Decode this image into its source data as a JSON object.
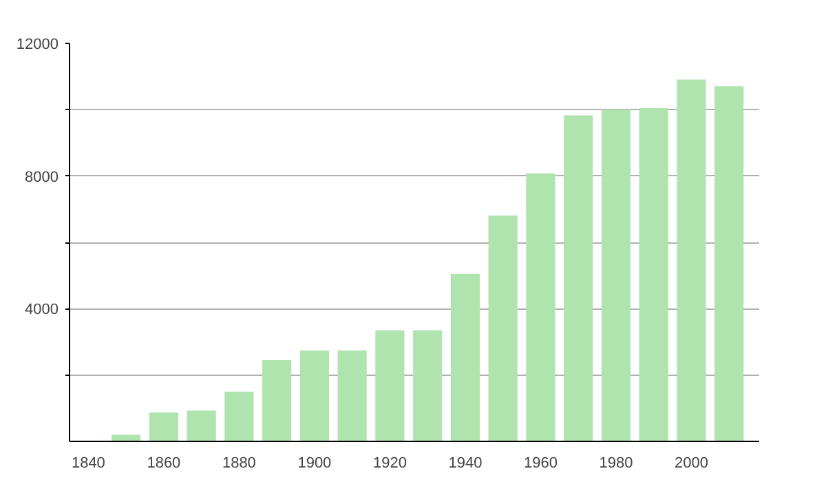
{
  "chart_data": {
    "type": "bar",
    "x": [
      1850,
      1860,
      1870,
      1880,
      1890,
      1900,
      1910,
      1920,
      1930,
      1940,
      1950,
      1960,
      1970,
      1980,
      1990,
      2000,
      2010
    ],
    "values": [
      200,
      870,
      930,
      1500,
      2450,
      2740,
      2740,
      3350,
      3350,
      5050,
      6810,
      8080,
      9830,
      10000,
      10050,
      10910,
      10710
    ],
    "color": "#b0e4ae",
    "xlim": [
      1835,
      2018
    ],
    "xticks": [
      1840,
      1860,
      1880,
      1900,
      1920,
      1940,
      1960,
      1980,
      2000
    ],
    "ylim": [
      0,
      12000
    ],
    "yticks": [
      {
        "value": 2000,
        "label": null
      },
      4000,
      {
        "value": 6000,
        "label": null
      },
      8000,
      {
        "value": 10000,
        "label": null
      },
      12000
    ],
    "grid": "y"
  }
}
